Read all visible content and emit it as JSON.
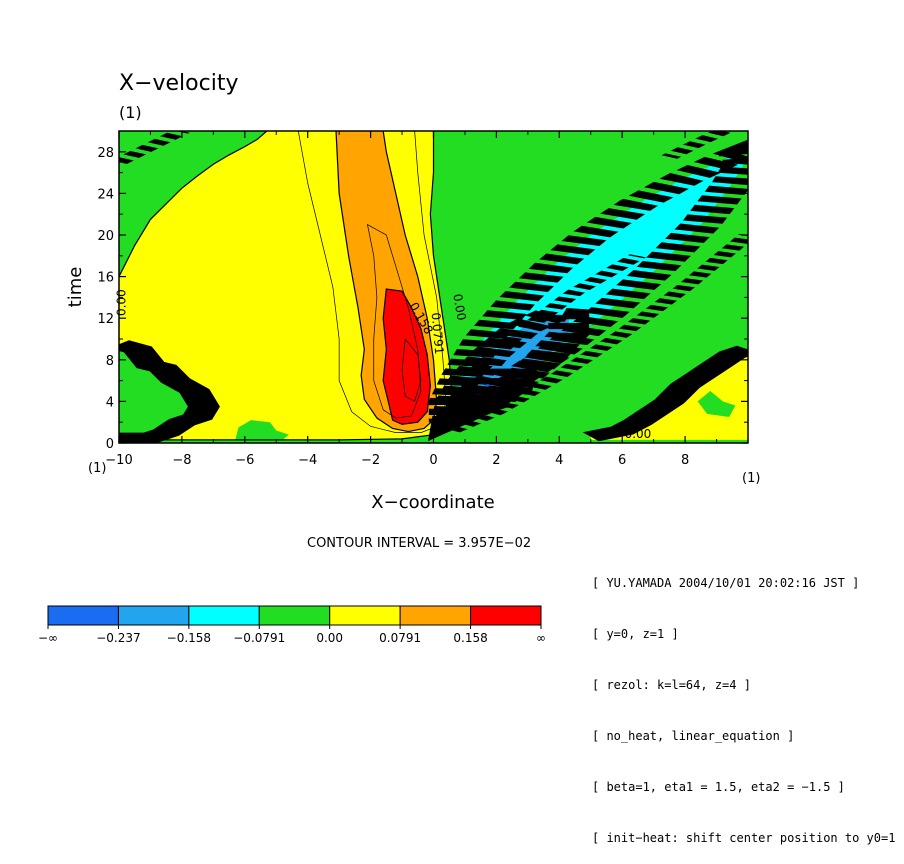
{
  "chart_data": {
    "type": "contour",
    "title": "X−velocity",
    "title_unit": "(1)",
    "xlabel": "X−coordinate",
    "ylabel": "time",
    "x_unit": "(1)",
    "y_unit": "(1)",
    "xlim": [
      -10,
      10
    ],
    "ylim": [
      0,
      30
    ],
    "x_ticks": [
      "−10",
      "−8",
      "−6",
      "−4",
      "−2",
      "0",
      "2",
      "4",
      "6",
      "8"
    ],
    "y_ticks": [
      "0",
      "4",
      "8",
      "12",
      "16",
      "20",
      "24",
      "28"
    ],
    "contour_interval_text": "CONTOUR INTERVAL = 3.957E−02",
    "contour_labels": [
      {
        "text": "0.00",
        "x": -9.8,
        "y": 13.5,
        "angle": -90
      },
      {
        "text": "0.158",
        "x": -0.5,
        "y": 11.8,
        "angle": 60
      },
      {
        "text": "0.0791",
        "x": 0.0,
        "y": 10.5,
        "angle": 85
      },
      {
        "text": "0.00",
        "x": 0.7,
        "y": 13.0,
        "angle": 80
      },
      {
        "text": "0.00",
        "x": 6.5,
        "y": 0.5,
        "angle": 0
      }
    ],
    "legend": {
      "labels": [
        "−∞",
        "−0.237",
        "−0.158",
        "−0.0791",
        "0.00",
        "0.0791",
        "0.158",
        "∞"
      ],
      "colors": [
        "#1a6cf0",
        "#22a4ee",
        "#00ffff",
        "#22dd22",
        "#ffff00",
        "#ffa400",
        "#ff0000"
      ]
    },
    "colors": {
      "background_band": "#22dd22",
      "positive_low": "#ffff00",
      "positive_mid": "#ffa400",
      "positive_high": "#ff0000",
      "negative_low": "#00ffff",
      "negative_mid": "#22a4ee",
      "negative_high": "#1a6cf0"
    }
  },
  "info_lines": [
    "[ YU.YAMADA 2004/10/01 20:02:16 JST ]",
    "[ y=0, z=1 ]",
    "[ rezol: k=l=64, z=4 ]",
    "[ no_heat, linear_equation ]",
    "[ beta=1, eta1 = 1.5, eta2 = −1.5 ]",
    "[ init−heat: shift center position to y0=1 ]"
  ]
}
